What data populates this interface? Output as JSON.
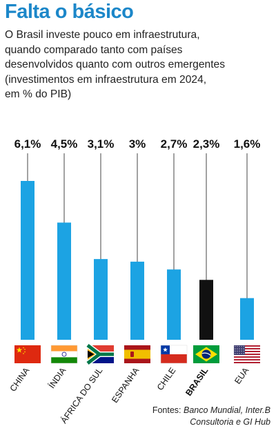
{
  "header": {
    "title": "Falta o básico",
    "subtitle_lines": [
      "O Brasil investe pouco em infraestrutura,",
      "quando comparado tanto com países",
      "desenvolvidos quanto com outros emergentes",
      "(investimentos em infraestrutura em 2024,",
      "em % do PIB)"
    ]
  },
  "chart_data": {
    "type": "bar",
    "categories": [
      "CHINA",
      "ÍNDIA",
      "ÁFRICA DO SUL",
      "ESPANHA",
      "CHILE",
      "BRASIL",
      "EUA"
    ],
    "values": [
      6.1,
      4.5,
      3.1,
      3.0,
      2.7,
      2.3,
      1.6
    ],
    "value_labels": [
      "6,1%",
      "4,5%",
      "3,1%",
      "3%",
      "2,7%",
      "2,3%",
      "1,6%"
    ],
    "highlight": "BRASIL",
    "ylim": [
      0,
      6.1
    ],
    "colors": {
      "bar": "#1ca3e3",
      "highlight": "#111111",
      "line": "#444444"
    },
    "flags": [
      "china-flag-icon",
      "india-flag-icon",
      "south-africa-flag-icon",
      "spain-flag-icon",
      "chile-flag-icon",
      "brazil-flag-icon",
      "usa-flag-icon"
    ]
  },
  "source": {
    "prefix": "Fontes: ",
    "line1": "Banco Mundial, Inter.B",
    "line2": "Consultoria e GI Hub"
  }
}
